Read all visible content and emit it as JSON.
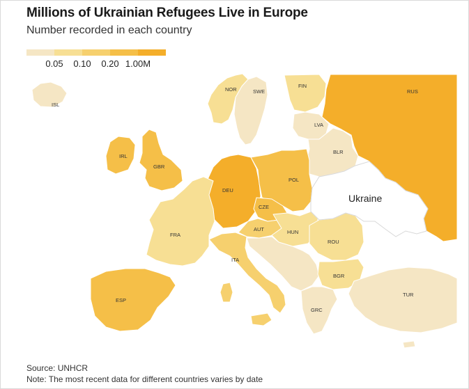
{
  "title": "Millions of Ukrainian Refugees Live in Europe",
  "subtitle": "Number recorded in each country",
  "legend": {
    "colors": [
      "#f5e6c4",
      "#f7df94",
      "#f6d06e",
      "#f5bf48",
      "#f4ae2a"
    ],
    "labels": [
      "0.05",
      "0.10",
      "0.20",
      "1.00M"
    ]
  },
  "map": {
    "ocean_color": "#ffffff",
    "border_color": "#ffffff",
    "non_europe_fill": "#ffffff",
    "ukraine_label": "Ukraine",
    "countries": [
      {
        "code": "ISL",
        "tier": 0
      },
      {
        "code": "NOR",
        "tier": 1
      },
      {
        "code": "SWE",
        "tier": 0
      },
      {
        "code": "FIN",
        "tier": 1
      },
      {
        "code": "RUS",
        "tier": 4
      },
      {
        "code": "LVA",
        "tier": 0
      },
      {
        "code": "BLR",
        "tier": 0
      },
      {
        "code": "IRL",
        "tier": 3
      },
      {
        "code": "GBR",
        "tier": 3
      },
      {
        "code": "DEU",
        "tier": 4
      },
      {
        "code": "POL",
        "tier": 3
      },
      {
        "code": "CZE",
        "tier": 3
      },
      {
        "code": "AUT",
        "tier": 2
      },
      {
        "code": "HUN",
        "tier": 1
      },
      {
        "code": "ROU",
        "tier": 1
      },
      {
        "code": "FRA",
        "tier": 1
      },
      {
        "code": "ITA",
        "tier": 2
      },
      {
        "code": "ESP",
        "tier": 3
      },
      {
        "code": "BGR",
        "tier": 1
      },
      {
        "code": "GRC",
        "tier": 0
      },
      {
        "code": "TUR",
        "tier": 0
      }
    ]
  },
  "source": "Source: UNHCR",
  "note": "Note: The most recent data for different countries varies by date"
}
